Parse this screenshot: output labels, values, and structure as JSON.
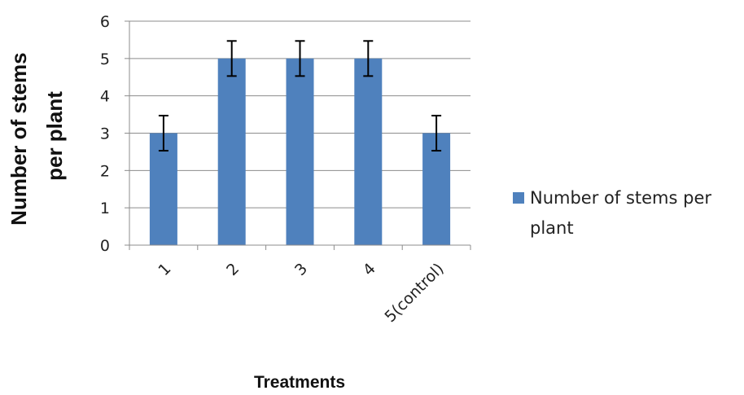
{
  "chart_data": {
    "type": "bar",
    "categories": [
      "1",
      "2",
      "3",
      "4",
      "5(control)"
    ],
    "series": [
      {
        "name": "Number of stems per plant",
        "values": [
          3,
          5,
          5,
          5,
          3
        ],
        "error": [
          0.47,
          0.47,
          0.47,
          0.47,
          0.47
        ]
      }
    ],
    "xlabel": "Treatments",
    "ylabel_lines": [
      "Number of stems",
      "per plant"
    ],
    "legend_lines": [
      "Number of stems per",
      "plant"
    ],
    "ylim": [
      0,
      6
    ],
    "yticks": [
      0,
      1,
      2,
      3,
      4,
      5,
      6
    ],
    "grid": true,
    "legend_position": "right",
    "bar_color": "#4f81bd"
  }
}
